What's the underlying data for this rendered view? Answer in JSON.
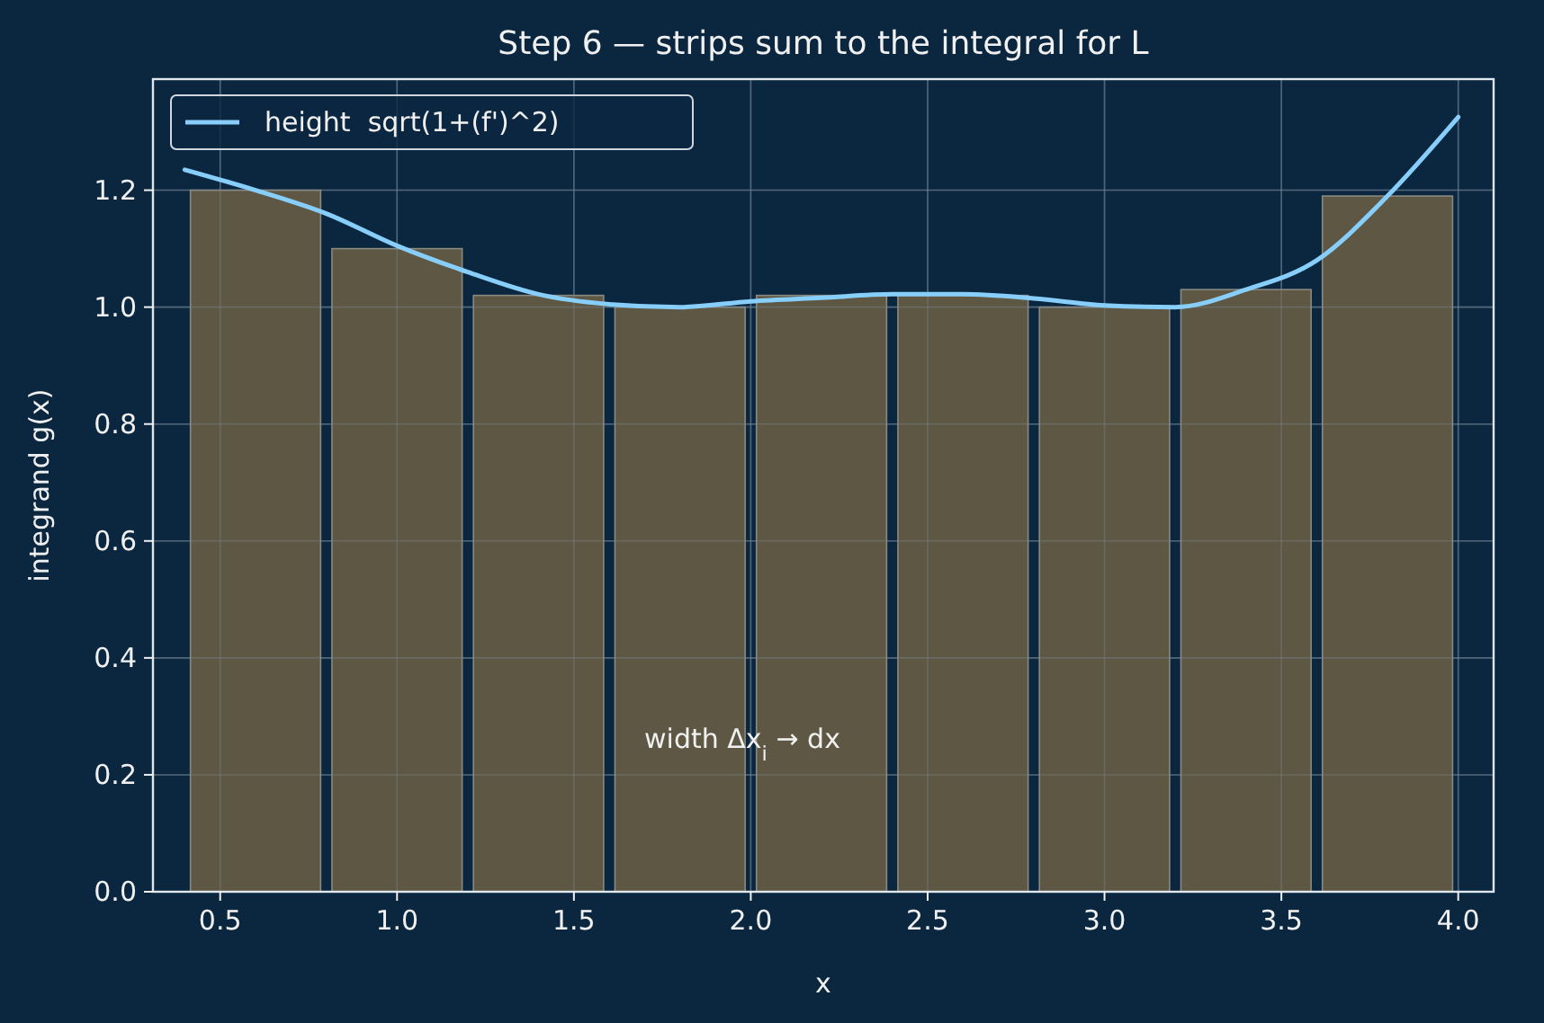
{
  "chart_data": {
    "type": "histogram",
    "title": "Step 6 — strips sum to the integral for L",
    "xlabel": "x",
    "ylabel": "integrand g(x)",
    "bins": [
      0.4,
      0.8,
      1.2,
      1.6,
      2.0,
      2.4,
      2.8,
      3.2,
      3.6,
      4.0
    ],
    "values": [
      1.2,
      1.1,
      1.02,
      1.0,
      1.02,
      1.02,
      1.0,
      1.03,
      1.19
    ],
    "color": "#625a45",
    "series": [
      {
        "type": "line",
        "name": "height  sqrt(1+(f')^2)",
        "color": "#87cefa",
        "x": [
          0.4,
          0.6,
          0.8,
          1.0,
          1.2,
          1.4,
          1.6,
          1.8,
          2.0,
          2.2,
          2.4,
          2.6,
          2.8,
          3.0,
          3.2,
          3.4,
          3.6,
          3.8,
          4.0
        ],
        "values": [
          1.235,
          1.2,
          1.16,
          1.105,
          1.06,
          1.022,
          1.005,
          1.0,
          1.01,
          1.016,
          1.022,
          1.022,
          1.015,
          1.003,
          1.0,
          1.03,
          1.08,
          1.19,
          1.325
        ]
      }
    ],
    "annotations": [
      "width Δx$_{i}$ → dx"
    ],
    "xlim": [
      0.31,
      4.1
    ],
    "ylim": [
      0,
      1.39
    ],
    "xticks": [
      {
        "value": 0.5,
        "label": "0.5"
      },
      {
        "value": 1.0,
        "label": "1.0"
      },
      {
        "value": 1.5,
        "label": "1.5"
      },
      {
        "value": 2.0,
        "label": "2.0"
      },
      {
        "value": 2.5,
        "label": "2.5"
      },
      {
        "value": 3.0,
        "label": "3.0"
      },
      {
        "value": 3.5,
        "label": "3.5"
      },
      {
        "value": 4.0,
        "label": "4.0"
      }
    ],
    "yticks": [
      {
        "value": 0,
        "label": "0.0"
      },
      {
        "value": 0.2,
        "label": "0.2"
      },
      {
        "value": 0.4,
        "label": "0.4"
      },
      {
        "value": 0.6,
        "label": "0.6"
      },
      {
        "value": 0.8,
        "label": "0.8"
      },
      {
        "value": 1.0,
        "label": "1.0"
      },
      {
        "value": 1.2,
        "label": "1.2"
      }
    ],
    "grid": true,
    "legend": "top left"
  }
}
